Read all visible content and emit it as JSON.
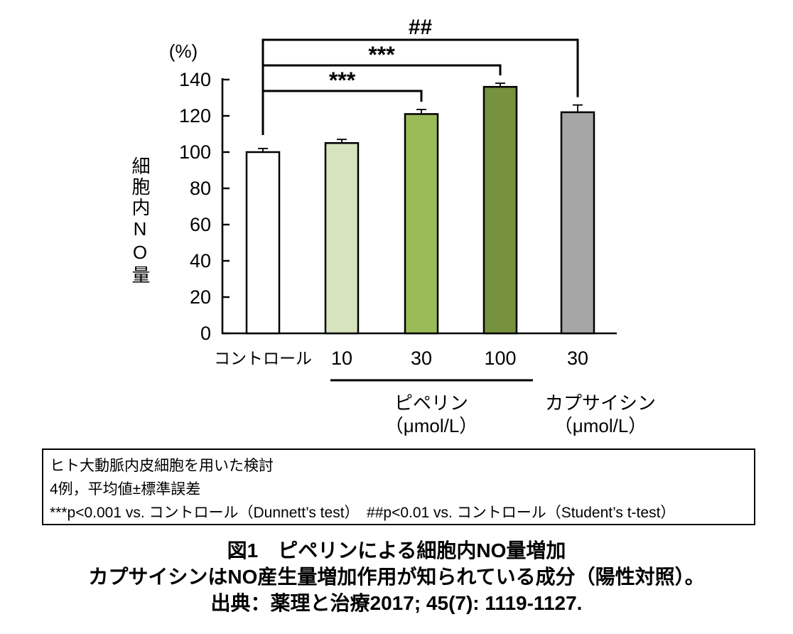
{
  "chart_data": {
    "type": "bar",
    "title": "",
    "ylabel": "細胞内NO量",
    "y_unit_label": "(%)",
    "xlabel": "",
    "ylim": [
      0,
      140
    ],
    "yticks": [
      0,
      20,
      40,
      60,
      80,
      100,
      120,
      140
    ],
    "grid": false,
    "legend": false,
    "categories": [
      "コントロール",
      "10",
      "30",
      "100",
      "30"
    ],
    "values": [
      100,
      105,
      121,
      136,
      122
    ],
    "errors": [
      2,
      2,
      2.5,
      2,
      4
    ],
    "error_type": "SEM",
    "bar_colors": [
      "#ffffff",
      "#d6e3bc",
      "#9bbb59",
      "#76923c",
      "#a6a6a6"
    ],
    "bar_border_color": "#000000",
    "groups": [
      {
        "label": "ピペリン",
        "unit": "（μmol/L）",
        "bar_indexes": [
          1,
          2,
          3
        ],
        "underline": true
      },
      {
        "label": "カプサイシン",
        "unit": "（μmol/L）",
        "bar_indexes": [
          4
        ],
        "underline": false
      }
    ],
    "significance": [
      {
        "label": "***",
        "from": 0,
        "to": 2
      },
      {
        "label": "***",
        "from": 0,
        "to": 3
      },
      {
        "label": "##",
        "from": 0,
        "to": 4
      }
    ]
  },
  "footnote_box": {
    "lines": [
      "ヒト大動脈内皮細胞を用いた検討",
      "4例，平均値±標準誤差",
      "***p<0.001 vs. コントロール（Dunnett’s test）　##p<0.01 vs. コントロール（Student’s t-test）"
    ]
  },
  "caption": {
    "lines": [
      "図1　ピペリンによる細胞内NO量増加",
      "カプサイシンはNO産生量増加作用が知られている成分（陽性対照）。",
      "出典：薬理と治療2017; 45(7): 1119-1127."
    ]
  }
}
